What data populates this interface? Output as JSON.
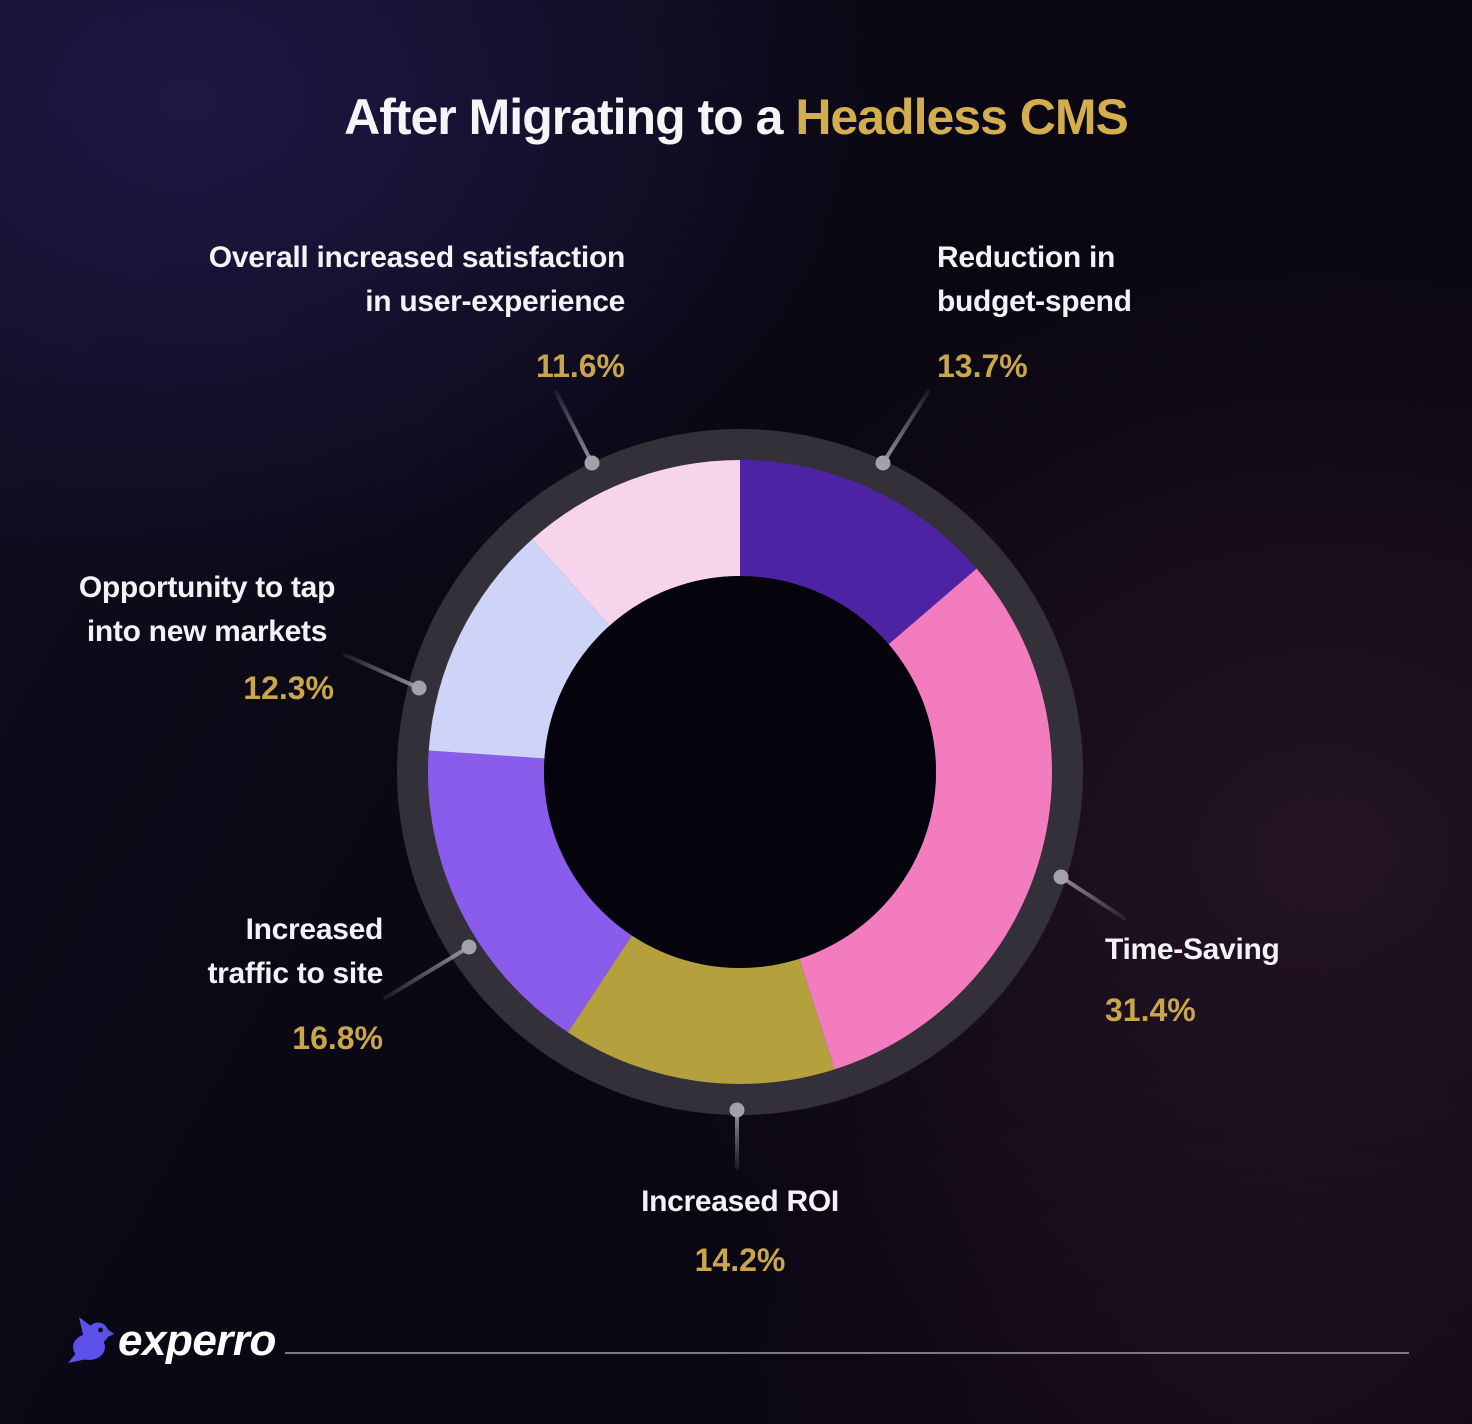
{
  "title": {
    "prefix": "After Migrating to a ",
    "highlight": "Headless CMS"
  },
  "callouts": {
    "satisfaction": {
      "line1": "Overall increased satisfaction",
      "line2": "in user-experience",
      "percent": "11.6%"
    },
    "budget": {
      "line1": "Reduction in",
      "line2": "budget-spend",
      "percent": "13.7%"
    },
    "time": {
      "line1": "Time-Saving",
      "percent": "31.4%"
    },
    "roi": {
      "line1": "Increased ROI",
      "percent": "14.2%"
    },
    "traffic": {
      "line1": "Increased",
      "line2": "traffic to site",
      "percent": "16.8%"
    },
    "markets": {
      "line1": "Opportunity to tap",
      "line2": "into new markets",
      "percent": "12.3%"
    }
  },
  "footer": {
    "brand": "experro"
  },
  "colors": {
    "title_highlight_gold": "#d2ae4e",
    "percent_gold": "#c9a54b",
    "label_text": "#f3f2f7",
    "outer_ring": "#34303a",
    "donut_hole": "#05040c",
    "leader_line": "#9a99a2",
    "logo_purple": "#5b50e8"
  },
  "chart_data": {
    "type": "pie",
    "subtype": "donut",
    "title": "After Migrating to a Headless CMS",
    "unit": "%",
    "start_angle_deg": 0,
    "direction": "clockwise",
    "legend_position": "callouts-around-chart",
    "segments": [
      {
        "id": "budget",
        "label": "Reduction in budget-spend",
        "value": 13.7,
        "color": "#4d23a4"
      },
      {
        "id": "time",
        "label": "Time-Saving",
        "value": 31.4,
        "color": "#f27cbe"
      },
      {
        "id": "roi",
        "label": "Increased ROI",
        "value": 14.2,
        "color": "#b5a03e"
      },
      {
        "id": "traffic",
        "label": "Increased traffic to site",
        "value": 16.8,
        "color": "#8a5cec"
      },
      {
        "id": "markets",
        "label": "Opportunity to tap into new markets",
        "value": 12.3,
        "color": "#cdd4f7"
      },
      {
        "id": "satisfaction",
        "label": "Overall increased satisfaction in user-experience",
        "value": 11.6,
        "color": "#f8d3ec"
      }
    ]
  }
}
